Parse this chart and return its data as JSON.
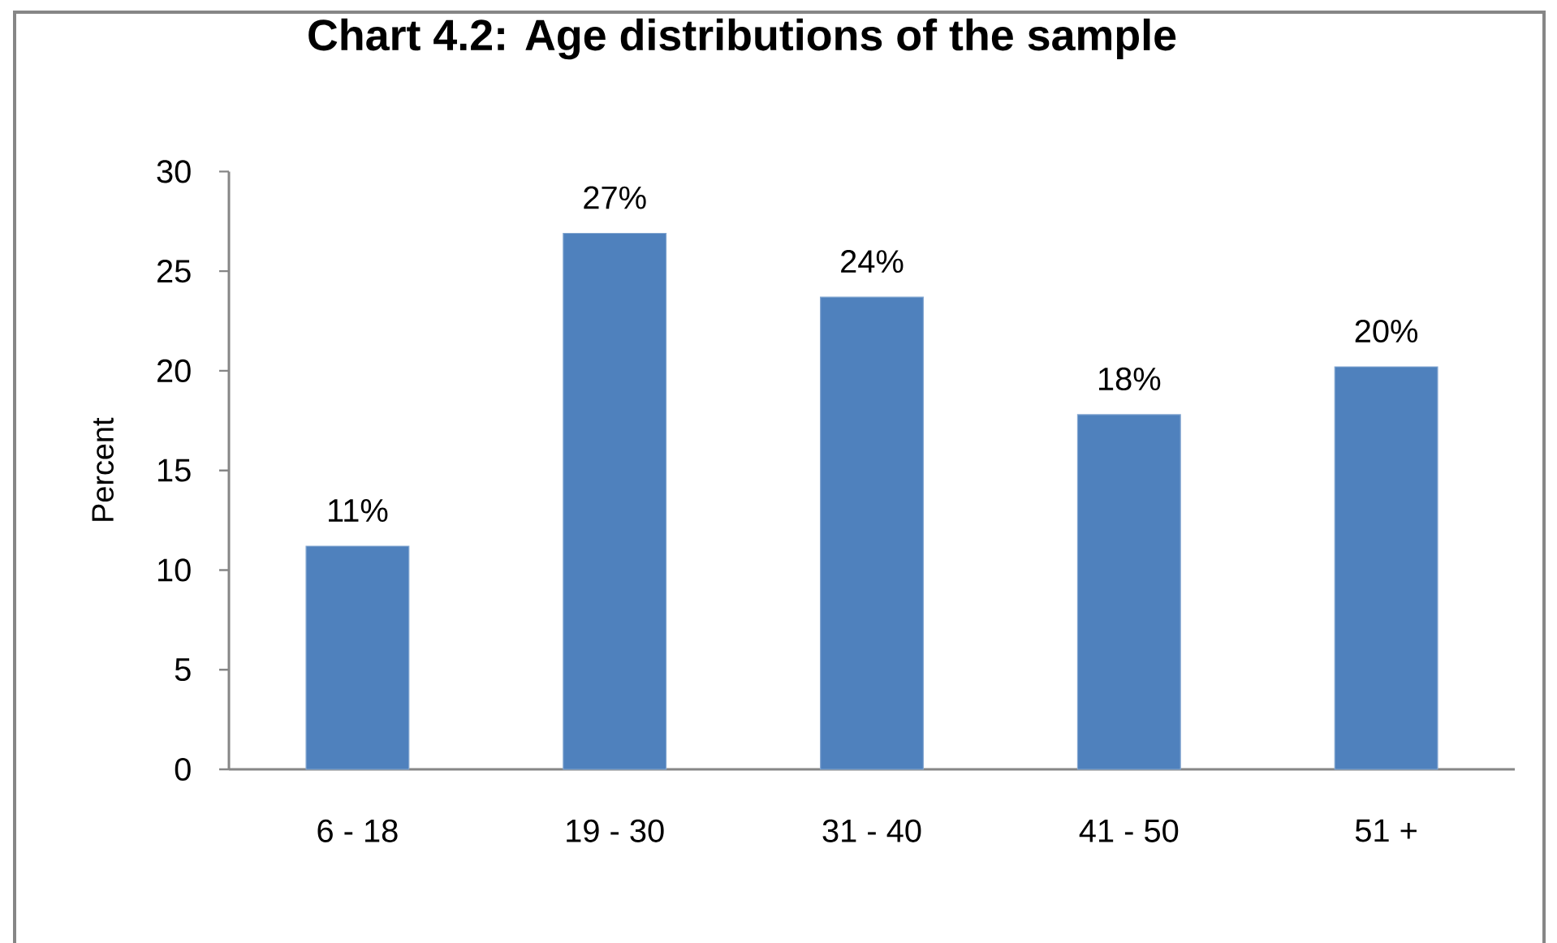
{
  "chart_data": {
    "type": "bar",
    "title": "Chart 4.2: Age distributions of the sample",
    "ylabel": "Percent",
    "categories": [
      "6 - 18",
      "19 - 30",
      "31 - 40",
      "41 - 50",
      "51 +"
    ],
    "values": [
      11.2,
      26.9,
      23.7,
      17.8,
      20.2
    ],
    "value_labels": [
      "11%",
      "27%",
      "24%",
      "18%",
      "20%"
    ],
    "color": "#4f81bd",
    "ylim": [
      0,
      30
    ],
    "yticks": [
      0,
      5,
      10,
      15,
      20,
      25,
      30
    ]
  }
}
